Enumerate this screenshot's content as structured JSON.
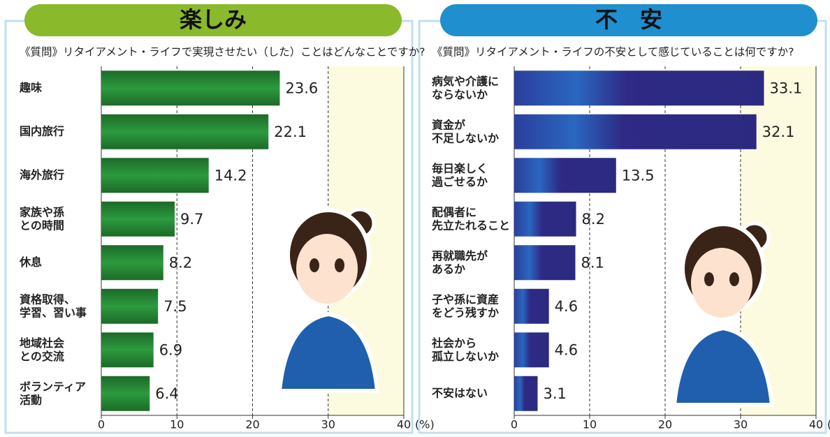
{
  "chart_data": [
    {
      "type": "bar",
      "orientation": "horizontal",
      "title": "楽しみ",
      "subtitle": "《質問》リタイアメント・ライフで実現させたい（した）ことはどんなことですか?",
      "categories": [
        "趣味",
        "国内旅行",
        "海外旅行",
        "家族や孫\nとの時間",
        "休息",
        "資格取得、\n学習、習い事",
        "地域社会\nとの交流",
        "ボランティア\n活動"
      ],
      "values": [
        23.6,
        22.1,
        14.2,
        9.7,
        8.2,
        7.5,
        6.9,
        6.4
      ],
      "color": "#1f7a2e",
      "header_color": "#8ab92c",
      "xlim": [
        0,
        40
      ],
      "xticks": [
        0,
        10,
        20,
        30,
        40
      ],
      "x_unit": "(%)",
      "grid": true
    },
    {
      "type": "bar",
      "orientation": "horizontal",
      "title": "不　安",
      "subtitle": "《質問》リタイアメント・ライフの不安として感じていることは何ですか?",
      "categories": [
        "病気や介護に\nならないか",
        "資金が\n不足しないか",
        "毎日楽しく\n過ごせるか",
        "配偶者に\n先立たれること",
        "再就職先が\nあるか",
        "子や孫に資産\nをどう残すか",
        "社会から\n孤立しないか",
        "不安はない"
      ],
      "values": [
        33.1,
        32.1,
        13.5,
        8.2,
        8.1,
        4.6,
        4.6,
        3.1
      ],
      "color": "#2e2a85",
      "header_color": "#1f8fd0",
      "xlim": [
        0,
        40
      ],
      "xticks": [
        0,
        10,
        20,
        30,
        40
      ],
      "x_unit": "(%)",
      "grid": true
    }
  ]
}
